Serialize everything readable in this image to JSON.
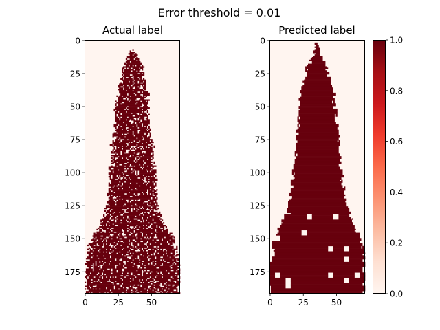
{
  "figure": {
    "suptitle": "Error threshold = 0.01"
  },
  "chart_data": [
    {
      "type": "heatmap",
      "title": "Actual label",
      "colormap": "Reds",
      "rows": 192,
      "cols": 72,
      "binary_values": [
        0,
        1
      ],
      "ylim": [
        192,
        0
      ],
      "xlim": [
        0,
        72
      ],
      "x_ticks": [
        0,
        25,
        50
      ],
      "y_ticks": [
        0,
        25,
        50,
        75,
        100,
        125,
        150,
        175
      ],
      "pattern": "speckled",
      "mask_halfwidth": [
        [
          6,
          0.5
        ],
        [
          10,
          3
        ],
        [
          20,
          8
        ],
        [
          30,
          9
        ],
        [
          40,
          12
        ],
        [
          50,
          13
        ],
        [
          60,
          13
        ],
        [
          70,
          14
        ],
        [
          80,
          16
        ],
        [
          90,
          16
        ],
        [
          100,
          18
        ],
        [
          110,
          18
        ],
        [
          120,
          19
        ],
        [
          130,
          21
        ],
        [
          140,
          25
        ],
        [
          150,
          32
        ],
        [
          160,
          34
        ],
        [
          170,
          36
        ],
        [
          180,
          36
        ],
        [
          192,
          36
        ]
      ]
    },
    {
      "type": "heatmap",
      "title": "Predicted label",
      "colormap": "Reds",
      "rows": 192,
      "cols": 72,
      "binary_values": [
        0,
        1
      ],
      "ylim": [
        192,
        0
      ],
      "xlim": [
        0,
        72
      ],
      "x_ticks": [
        0,
        25,
        50
      ],
      "y_ticks": [
        0,
        25,
        50,
        75,
        100,
        125,
        150,
        175
      ],
      "pattern": "solid",
      "mask_halfwidth": [
        [
          3,
          1
        ],
        [
          10,
          3
        ],
        [
          20,
          8
        ],
        [
          30,
          10
        ],
        [
          40,
          13
        ],
        [
          50,
          14
        ],
        [
          60,
          15
        ],
        [
          70,
          16
        ],
        [
          80,
          17
        ],
        [
          90,
          17
        ],
        [
          100,
          19
        ],
        [
          110,
          20
        ],
        [
          120,
          21
        ],
        [
          130,
          24
        ],
        [
          140,
          28
        ],
        [
          150,
          33
        ],
        [
          160,
          35
        ],
        [
          170,
          36
        ],
        [
          180,
          36
        ],
        [
          192,
          36
        ]
      ]
    }
  ],
  "colorbar": {
    "colormap": "Reds",
    "range": [
      0.0,
      1.0
    ],
    "ticks": [
      "0.0",
      "0.2",
      "0.4",
      "0.6",
      "0.8",
      "1.0"
    ],
    "stops": [
      "#fff5f0",
      "#fee0d2",
      "#fcbba1",
      "#fc9272",
      "#fb6a4a",
      "#ef3b2c",
      "#cb181d",
      "#a50f15",
      "#67000d"
    ]
  }
}
